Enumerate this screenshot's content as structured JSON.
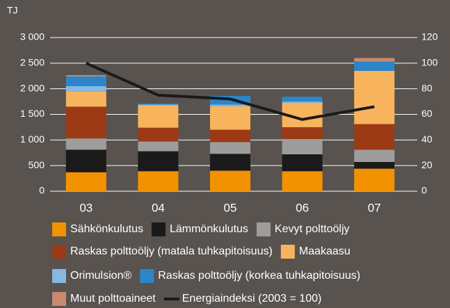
{
  "chart_data": {
    "type": "bar",
    "stacked": true,
    "y_label": "TJ",
    "categories": [
      "03",
      "04",
      "05",
      "06",
      "07"
    ],
    "ylim": [
      0,
      3000
    ],
    "yticks": [
      0,
      500,
      {
        "value": 1000,
        "label": "1 000"
      },
      {
        "value": 1500,
        "label": "1 500"
      },
      {
        "value": 2000,
        "label": "2 000"
      },
      {
        "value": 2500,
        "label": "2 500"
      },
      {
        "value": 3000,
        "label": "3 000"
      }
    ],
    "y2lim": [
      0,
      120
    ],
    "y2ticks": [
      0,
      20,
      40,
      60,
      80,
      100,
      120
    ],
    "grid": true,
    "series": [
      {
        "name": "Sähkönkulutus",
        "color": "#f39200",
        "values": [
          370,
          390,
          400,
          390,
          440
        ]
      },
      {
        "name": "Lämmönkulutus",
        "color": "#1a1a1a",
        "values": [
          440,
          390,
          330,
          330,
          130
        ]
      },
      {
        "name": "Kevyt polttoöljy",
        "color": "#9d9d9c",
        "values": [
          220,
          190,
          230,
          300,
          240
        ]
      },
      {
        "name": "Raskas polttoöljy (matala tuhkapitoisuus)",
        "color": "#9c3a16",
        "values": [
          620,
          270,
          240,
          230,
          500
        ]
      },
      {
        "name": "Maakaasu",
        "color": "#f8b45c",
        "values": [
          300,
          430,
          460,
          475,
          1040
        ]
      },
      {
        "name": "Orimulsion®",
        "color": "#86b8e0",
        "values": [
          100,
          20,
          30,
          25,
          0
        ]
      },
      {
        "name": "Raskas polttoöljy (korkea tuhkapitoisuus)",
        "color": "#2a86c8",
        "values": [
          190,
          20,
          170,
          95,
          180
        ]
      },
      {
        "name": "Muut polttoaineet",
        "color": "#c98a6e",
        "values": [
          25,
          0,
          0,
          0,
          70
        ]
      },
      {
        "name": "Energiaindeksi (2003 = 100)",
        "type": "line",
        "axis": "y2",
        "color": "#1a1a1a",
        "values": [
          100,
          75,
          72,
          56,
          66
        ]
      }
    ]
  }
}
